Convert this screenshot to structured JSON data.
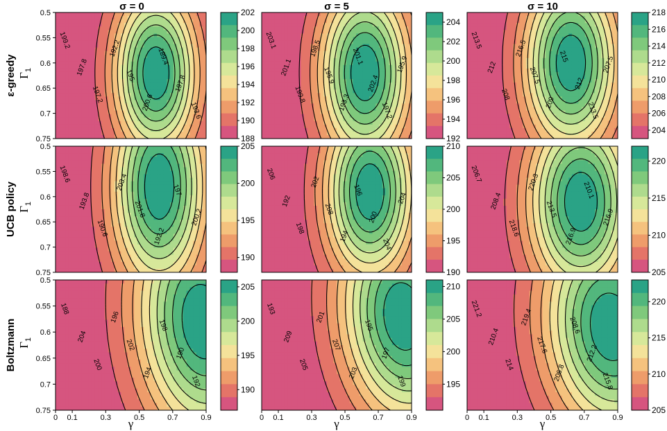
{
  "chart_data": {
    "type": "heatmap",
    "column_titles": [
      "σ = 0",
      "σ = 5",
      "σ = 10"
    ],
    "row_titles": [
      "ε-greedy",
      "UCB policy",
      "Boltzmann"
    ],
    "xlabel": "γ",
    "ylabel": "Γ",
    "ylabel_subscript": "1",
    "x_ticks": [
      "0",
      "0.1",
      "0.3",
      "0.5",
      "0.7",
      "0.9"
    ],
    "y_ticks": [
      "0.5",
      "0.55",
      "0.6",
      "0.65",
      "0.7",
      "0.75"
    ],
    "xlim": [
      0,
      0.9
    ],
    "ylim": [
      0.5,
      0.75
    ],
    "palette_low_to_high": [
      "#d6557f",
      "#e47468",
      "#ee9c6a",
      "#f5c27e",
      "#f4e29a",
      "#d7e89a",
      "#aedb8d",
      "#7fc97c",
      "#52b77d",
      "#2aa386"
    ],
    "panels": [
      {
        "policy": "ε-greedy",
        "sigma": "σ = 0",
        "z_min": 188,
        "z_max": 202,
        "peak_x": 0.6,
        "peak_y": 0.62,
        "sx": 0.24,
        "sy": 0.16,
        "skew": 0,
        "cb_ticks": [
          "202",
          "200",
          "198",
          "196",
          "194",
          "192",
          "190",
          "188"
        ],
        "labels": [
          "199.2",
          "197.8",
          "197.2",
          "192.2",
          "195",
          "200.6",
          "189.4",
          "197.8",
          "193.6"
        ]
      },
      {
        "policy": "ε-greedy",
        "sigma": "σ = 5",
        "z_min": 192,
        "z_max": 205,
        "peak_x": 0.62,
        "peak_y": 0.62,
        "sx": 0.26,
        "sy": 0.17,
        "skew": 0,
        "cb_ticks": [
          "204",
          "202",
          "200",
          "198",
          "196",
          "194",
          "192"
        ],
        "labels": [
          "203.1",
          "201.1",
          "199.8",
          "198.5",
          "195.9",
          "193.3",
          "201.1",
          "202.4",
          "197.2",
          "195.9"
        ]
      },
      {
        "policy": "ε-greedy",
        "sigma": "σ = 10",
        "z_min": 203,
        "z_max": 218,
        "peak_x": 0.62,
        "peak_y": 0.6,
        "sx": 0.27,
        "sy": 0.17,
        "skew": 0,
        "cb_ticks": [
          "218",
          "216",
          "214",
          "212",
          "210",
          "208",
          "206",
          "204"
        ],
        "labels": [
          "213.5",
          "212",
          "208",
          "216.5",
          "207.5",
          "209",
          "215",
          "212",
          "213.5",
          "207.5"
        ]
      },
      {
        "policy": "UCB policy",
        "sigma": "σ = 0",
        "z_min": 188,
        "z_max": 205,
        "peak_x": 0.62,
        "peak_y": 0.58,
        "sx": 0.27,
        "sy": 0.2,
        "skew": 0,
        "cb_ticks": [
          "205",
          "200",
          "195",
          "190"
        ],
        "labels": [
          "198.6",
          "193.8",
          "190.6",
          "203.4",
          "201.8",
          "192.2",
          "197",
          "200.2"
        ]
      },
      {
        "policy": "UCB policy",
        "sigma": "σ = 5",
        "z_min": 190,
        "z_max": 210,
        "peak_x": 0.65,
        "peak_y": 0.59,
        "sx": 0.26,
        "sy": 0.17,
        "skew": 0,
        "cb_ticks": [
          "210",
          "205",
          "200",
          "195",
          "190"
        ],
        "labels": [
          "206",
          "192",
          "198",
          "202",
          "208",
          "194",
          "196",
          "200",
          "204",
          "204"
        ]
      },
      {
        "policy": "UCB policy",
        "sigma": "σ = 10",
        "z_min": 205,
        "z_max": 222,
        "peak_x": 0.68,
        "peak_y": 0.61,
        "sx": 0.3,
        "sy": 0.18,
        "skew": 0,
        "cb_ticks": [
          "220",
          "215",
          "210",
          "205"
        ],
        "labels": [
          "206.7",
          "208.4",
          "218.6",
          "220.3",
          "213.5",
          "216.9",
          "210.1",
          "216.9"
        ]
      },
      {
        "policy": "Boltzmann",
        "sigma": "σ = 0",
        "z_min": 187,
        "z_max": 206,
        "peak_x": 0.88,
        "peak_y": 0.58,
        "sx": 0.38,
        "sy": 0.22,
        "skew": 0.2,
        "cb_ticks": [
          "205",
          "200",
          "195",
          "190"
        ],
        "labels": [
          "188",
          "204",
          "200",
          "196",
          "202",
          "194",
          "198",
          "190",
          "192"
        ]
      },
      {
        "policy": "Boltzmann",
        "sigma": "σ = 5",
        "z_min": 191,
        "z_max": 211,
        "peak_x": 0.85,
        "peak_y": 0.57,
        "sx": 0.36,
        "sy": 0.2,
        "skew": 0.22,
        "cb_ticks": [
          "210",
          "205",
          "200",
          "195"
        ],
        "labels": [
          "193",
          "209",
          "205",
          "201",
          "207",
          "203",
          "195",
          "197",
          "199"
        ]
      },
      {
        "policy": "Boltzmann",
        "sigma": "σ = 10",
        "z_min": 205,
        "z_max": 223,
        "peak_x": 0.86,
        "peak_y": 0.59,
        "sx": 0.38,
        "sy": 0.2,
        "skew": 0.2,
        "cb_ticks": [
          "220",
          "215",
          "210",
          "205"
        ],
        "labels": [
          "221.2",
          "210.4",
          "214",
          "219.4",
          "217.6",
          "206.8",
          "208.6",
          "212.2",
          "215.8"
        ]
      }
    ]
  }
}
